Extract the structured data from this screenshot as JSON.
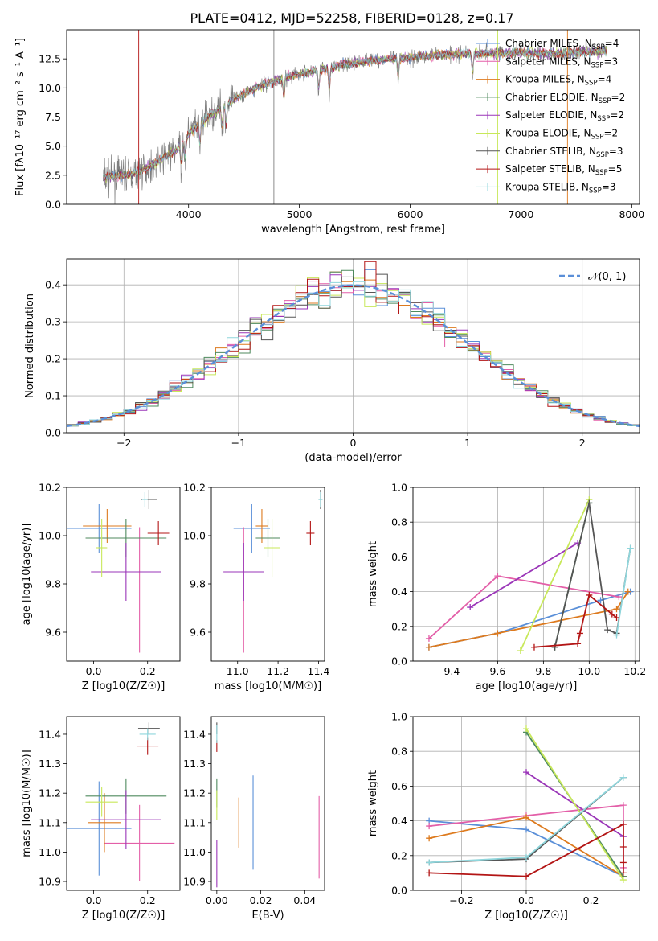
{
  "figure_title": "PLATE=0412, MJD=52258, FIBERID=0128, z=0.17",
  "models": [
    {
      "key": "chabrier_miles",
      "label": "Chabrier MILES, N",
      "nssp": "=4",
      "color": "#5a8fd8"
    },
    {
      "key": "salpeter_miles",
      "label": "Salpeter MILES, N",
      "nssp": "=3",
      "color": "#e35fa8"
    },
    {
      "key": "kroupa_miles",
      "label": "Kroupa MILES, N",
      "nssp": "=4",
      "color": "#dd7a1e"
    },
    {
      "key": "chabrier_elodie",
      "label": "Chabrier ELODIE, N",
      "nssp": "=2",
      "color": "#4f8a5e"
    },
    {
      "key": "salpeter_elodie",
      "label": "Salpeter ELODIE, N",
      "nssp": "=2",
      "color": "#9a35b8"
    },
    {
      "key": "kroupa_elodie",
      "label": "Kroupa ELODIE, N",
      "nssp": "=2",
      "color": "#c8e85a"
    },
    {
      "key": "chabrier_stelib",
      "label": "Chabrier STELIB, N",
      "nssp": "=3",
      "color": "#555555"
    },
    {
      "key": "salpeter_stelib",
      "label": "Salpeter STELIB, N",
      "nssp": "=5",
      "color": "#b31515"
    },
    {
      "key": "kroupa_stelib",
      "label": "Kroupa STELIB, N",
      "nssp": "=3",
      "color": "#8fd6dc"
    }
  ],
  "chart_data": [
    {
      "id": "spectrum",
      "type": "line",
      "xlabel": "wavelength [Angstrom, rest frame]",
      "ylabel": "Flux [fλ10⁻¹⁷ erg cm⁻² s⁻¹ A⁻¹]",
      "xlim": [
        2900,
        8070
      ],
      "ylim": [
        0,
        15
      ],
      "xticks": [
        4000,
        5000,
        6000,
        7000,
        8000
      ],
      "yticks": [
        0.0,
        2.5,
        5.0,
        7.5,
        10.0,
        12.5
      ],
      "ytick_labels": [
        "0.0",
        "2.5",
        "5.0",
        "7.5",
        "10.0",
        "12.5"
      ],
      "x_range": [
        3230,
        7780
      ],
      "continuum": {
        "x": [
          3230,
          3500,
          3700,
          3900,
          4000,
          4200,
          4400,
          4600,
          4800,
          5000,
          5200,
          5400,
          5600,
          5800,
          6000,
          6200,
          6400,
          6600,
          6800,
          7000,
          7200,
          7400,
          7600,
          7780
        ],
        "y": [
          2.3,
          2.6,
          3.5,
          4.8,
          6.0,
          7.7,
          9.0,
          10.0,
          10.7,
          11.2,
          11.6,
          12.0,
          12.3,
          12.5,
          12.6,
          12.8,
          12.9,
          13.0,
          13.0,
          13.0,
          13.0,
          13.0,
          13.1,
          13.2
        ]
      },
      "absorption_lines": [
        3934,
        3969,
        4102,
        4304,
        4340,
        4861,
        5175,
        5270,
        5892,
        6563
      ],
      "spikes": [
        {
          "x": 4770,
          "color": "#7f7f7f"
        },
        {
          "x": 6790,
          "color": "#c8e85a"
        },
        {
          "x": 7420,
          "color": "#dd7a1e"
        },
        {
          "x": 3550,
          "color": "#b31515"
        }
      ]
    },
    {
      "id": "residuals",
      "type": "histogram",
      "xlabel": "(data-model)/error",
      "ylabel": "Normed distribution",
      "xlim": [
        -2.5,
        2.5
      ],
      "ylim": [
        0,
        0.47
      ],
      "xticks": [
        -2,
        -1,
        0,
        1,
        2
      ],
      "xtick_labels": [
        "−2",
        "−1",
        "0",
        "1",
        "2"
      ],
      "yticks": [
        0.0,
        0.1,
        0.2,
        0.3,
        0.4
      ],
      "ytick_labels": [
        "0.0",
        "0.1",
        "0.2",
        "0.3",
        "0.4"
      ],
      "grid": true,
      "bin_width": 0.1,
      "reference_label": "𝒩(0, 1)",
      "reference_color": "#5a8fd8"
    },
    {
      "id": "age_vs_Z",
      "type": "errorbar",
      "xlabel": "Z [log10(Z/Z☉)]",
      "ylabel": "age  [log10(age/yr)]",
      "xlim": [
        -0.1,
        0.32
      ],
      "ylim": [
        9.48,
        10.2
      ],
      "xticks": [
        0.0,
        0.2
      ],
      "xtick_labels": [
        "0.0",
        "0.2"
      ],
      "yticks": [
        9.6,
        9.8,
        10.0,
        10.2
      ],
      "ytick_labels": [
        "9.6",
        "9.8",
        "10.0",
        "10.2"
      ],
      "points": [
        {
          "m": 0,
          "x": 0.02,
          "xerr": 0.12,
          "y": 10.03,
          "yerr": 0.1
        },
        {
          "m": 1,
          "x": 0.17,
          "xerr": 0.13,
          "y": 9.775,
          "yerr": 0.26
        },
        {
          "m": 2,
          "x": 0.05,
          "xerr": 0.09,
          "y": 10.04,
          "yerr": 0.07
        },
        {
          "m": 3,
          "x": 0.12,
          "xerr": 0.15,
          "y": 9.99,
          "yerr": 0.08
        },
        {
          "m": 4,
          "x": 0.12,
          "xerr": 0.13,
          "y": 9.85,
          "yerr": 0.12
        },
        {
          "m": 5,
          "x": 0.03,
          "xerr": 0.02,
          "y": 9.95,
          "yerr": 0.12
        },
        {
          "m": 6,
          "x": 0.205,
          "xerr": 0.03,
          "y": 10.15,
          "yerr": 0.04
        },
        {
          "m": 7,
          "x": 0.24,
          "xerr": 0.04,
          "y": 10.01,
          "yerr": 0.05
        },
        {
          "m": 8,
          "x": 0.19,
          "xerr": 0.01,
          "y": 10.15,
          "yerr": 0.03
        }
      ]
    },
    {
      "id": "age_vs_mass",
      "type": "errorbar",
      "xlabel": "mass [log10(M/M☉)]",
      "ylabel": "",
      "xlim": [
        10.87,
        11.43
      ],
      "ylim": [
        9.48,
        10.2
      ],
      "xticks": [
        11.0,
        11.2,
        11.4
      ],
      "xtick_labels": [
        "11.0",
        "11.2",
        "11.4"
      ],
      "yticks": [
        9.6,
        9.8,
        10.0,
        10.2
      ],
      "ytick_labels": [
        "9.6",
        "9.8",
        "10.0",
        "10.2"
      ],
      "points": [
        {
          "m": 0,
          "x": 11.07,
          "xerr": 0.09,
          "y": 10.03,
          "yerr": 0.1
        },
        {
          "m": 1,
          "x": 11.03,
          "xerr": 0.1,
          "y": 9.775,
          "yerr": 0.26
        },
        {
          "m": 2,
          "x": 11.12,
          "xerr": 0.03,
          "y": 10.04,
          "yerr": 0.07
        },
        {
          "m": 3,
          "x": 11.15,
          "xerr": 0.06,
          "y": 9.99,
          "yerr": 0.08
        },
        {
          "m": 4,
          "x": 11.03,
          "xerr": 0.1,
          "y": 9.85,
          "yerr": 0.12
        },
        {
          "m": 5,
          "x": 11.17,
          "xerr": 0.04,
          "y": 9.95,
          "yerr": 0.12
        },
        {
          "m": 6,
          "x": 11.41,
          "xerr": 0.01,
          "y": 10.15,
          "yerr": 0.04
        },
        {
          "m": 7,
          "x": 11.36,
          "xerr": 0.02,
          "y": 10.01,
          "yerr": 0.05
        },
        {
          "m": 8,
          "x": 11.41,
          "xerr": 0.01,
          "y": 10.15,
          "yerr": 0.03
        }
      ]
    },
    {
      "id": "weight_vs_age",
      "type": "line",
      "xlabel": "age  [log10(age/yr)]",
      "ylabel": "mass weight",
      "xlim": [
        9.23,
        10.22
      ],
      "ylim": [
        0,
        1
      ],
      "xticks": [
        9.4,
        9.6,
        9.8,
        10.0,
        10.2
      ],
      "xtick_labels": [
        "9.4",
        "9.6",
        "9.8",
        "10.0",
        "10.2"
      ],
      "yticks": [
        0.0,
        0.2,
        0.4,
        0.6,
        0.8,
        1.0
      ],
      "ytick_labels": [
        "0.0",
        "0.2",
        "0.4",
        "0.6",
        "0.8",
        "1.0"
      ],
      "grid": true,
      "series": [
        {
          "m": 0,
          "x": [
            9.3,
            9.6,
            10.05,
            10.18
          ],
          "y": [
            0.08,
            0.16,
            0.35,
            0.4
          ]
        },
        {
          "m": 1,
          "x": [
            9.3,
            9.6,
            10.13
          ],
          "y": [
            0.13,
            0.49,
            0.37
          ]
        },
        {
          "m": 2,
          "x": [
            9.3,
            9.6,
            10.12,
            10.17
          ],
          "y": [
            0.08,
            0.16,
            0.3,
            0.4
          ]
        },
        {
          "m": 3,
          "x": [
            9.85,
            10.0
          ],
          "y": [
            0.08,
            0.91
          ]
        },
        {
          "m": 4,
          "x": [
            9.48,
            9.95
          ],
          "y": [
            0.31,
            0.68
          ]
        },
        {
          "m": 5,
          "x": [
            9.7,
            10.0
          ],
          "y": [
            0.06,
            0.93
          ]
        },
        {
          "m": 6,
          "x": [
            9.85,
            10.0,
            10.08,
            10.12,
            10.18
          ],
          "y": [
            0.08,
            0.91,
            0.18,
            0.16,
            0.65
          ]
        },
        {
          "m": 7,
          "x": [
            9.76,
            9.95,
            9.96,
            10.0,
            10.1,
            10.12
          ],
          "y": [
            0.08,
            0.1,
            0.16,
            0.38,
            0.27,
            0.25
          ]
        },
        {
          "m": 8,
          "x": [
            10.12,
            10.18
          ],
          "y": [
            0.15,
            0.65
          ]
        }
      ]
    },
    {
      "id": "mass_vs_Z",
      "type": "errorbar",
      "xlabel": "Z [log10(Z/Z☉)]",
      "ylabel": "mass [log10(M/M☉)]",
      "xlim": [
        -0.1,
        0.32
      ],
      "ylim": [
        10.87,
        11.46
      ],
      "xticks": [
        0.0,
        0.2
      ],
      "xtick_labels": [
        "0.0",
        "0.2"
      ],
      "yticks": [
        10.9,
        11.0,
        11.1,
        11.2,
        11.3,
        11.4
      ],
      "ytick_labels": [
        "10.9",
        "11.0",
        "11.1",
        "11.2",
        "11.3",
        "11.4"
      ],
      "points": [
        {
          "m": 0,
          "x": 0.02,
          "xerr": 0.12,
          "y": 11.08,
          "yerr": 0.16
        },
        {
          "m": 1,
          "x": 0.17,
          "xerr": 0.13,
          "y": 11.03,
          "yerr": 0.13
        },
        {
          "m": 2,
          "x": 0.04,
          "xerr": 0.06,
          "y": 11.1,
          "yerr": 0.1
        },
        {
          "m": 3,
          "x": 0.12,
          "xerr": 0.15,
          "y": 11.19,
          "yerr": 0.06
        },
        {
          "m": 4,
          "x": 0.12,
          "xerr": 0.13,
          "y": 11.11,
          "yerr": 0.1
        },
        {
          "m": 5,
          "x": 0.03,
          "xerr": 0.06,
          "y": 11.17,
          "yerr": 0.05
        },
        {
          "m": 6,
          "x": 0.205,
          "xerr": 0.04,
          "y": 11.42,
          "yerr": 0.02
        },
        {
          "m": 7,
          "x": 0.2,
          "xerr": 0.04,
          "y": 11.36,
          "yerr": 0.03
        },
        {
          "m": 8,
          "x": 0.2,
          "xerr": 0.03,
          "y": 11.4,
          "yerr": 0.02
        }
      ]
    },
    {
      "id": "mass_vs_ebv",
      "type": "errorbar",
      "xlabel": "E(B-V)",
      "ylabel": "",
      "xlim": [
        -0.0025,
        0.049
      ],
      "ylim": [
        10.87,
        11.46
      ],
      "xticks": [
        0.0,
        0.02,
        0.04
      ],
      "xtick_labels": [
        "0.00",
        "0.02",
        "0.04"
      ],
      "yticks": [
        10.9,
        11.0,
        11.1,
        11.2,
        11.3,
        11.4
      ],
      "ytick_labels": [
        "10.9",
        "11.0",
        "11.1",
        "11.2",
        "11.3",
        "11.4"
      ],
      "points": [
        {
          "m": 0,
          "x": 0.0165,
          "xerr": 0,
          "y": 11.1,
          "yerr": 0.16
        },
        {
          "m": 1,
          "x": 0.0465,
          "xerr": 0,
          "y": 11.05,
          "yerr": 0.14
        },
        {
          "m": 2,
          "x": 0.01,
          "xerr": 0,
          "y": 11.1,
          "yerr": 0.085
        },
        {
          "m": 3,
          "x": 0.0,
          "xerr": 0,
          "y": 11.2,
          "yerr": 0.05
        },
        {
          "m": 4,
          "x": 0.0,
          "xerr": 0,
          "y": 10.96,
          "yerr": 0.08
        },
        {
          "m": 5,
          "x": 0.0,
          "xerr": 0,
          "y": 11.16,
          "yerr": 0.05
        },
        {
          "m": 6,
          "x": 0.0,
          "xerr": 0,
          "y": 11.42,
          "yerr": 0.02
        },
        {
          "m": 7,
          "x": 0.0,
          "xerr": 0,
          "y": 11.36,
          "yerr": 0.02
        },
        {
          "m": 8,
          "x": 0.0,
          "xerr": 0,
          "y": 11.4,
          "yerr": 0.03
        }
      ]
    },
    {
      "id": "weight_vs_Z",
      "type": "line",
      "xlabel": "Z [log10(Z/Z☉)]",
      "ylabel": "mass weight",
      "xlim": [
        -0.35,
        0.35
      ],
      "ylim": [
        0,
        1
      ],
      "xticks": [
        -0.2,
        0.0,
        0.2
      ],
      "xtick_labels": [
        "−0.2",
        "0.0",
        "0.2"
      ],
      "yticks": [
        0.0,
        0.2,
        0.4,
        0.6,
        0.8,
        1.0
      ],
      "ytick_labels": [
        "0.0",
        "0.2",
        "0.4",
        "0.6",
        "0.8",
        "1.0"
      ],
      "grid": true,
      "series": [
        {
          "m": 0,
          "x": [
            -0.3,
            0.0,
            0.3
          ],
          "y": [
            0.4,
            0.35,
            0.08
          ]
        },
        {
          "m": 1,
          "x": [
            -0.3,
            0.0,
            0.3,
            0.3
          ],
          "y": [
            0.37,
            0.43,
            0.49,
            0.13
          ]
        },
        {
          "m": 2,
          "x": [
            -0.3,
            0.0,
            0.3
          ],
          "y": [
            0.3,
            0.42,
            0.08
          ]
        },
        {
          "m": 3,
          "x": [
            0.0,
            0.3
          ],
          "y": [
            0.91,
            0.08
          ]
        },
        {
          "m": 4,
          "x": [
            0.0,
            0.3
          ],
          "y": [
            0.68,
            0.31
          ]
        },
        {
          "m": 5,
          "x": [
            0.0,
            0.3
          ],
          "y": [
            0.93,
            0.06
          ]
        },
        {
          "m": 6,
          "x": [
            -0.3,
            0.0,
            0.3
          ],
          "y": [
            0.16,
            0.18,
            0.65
          ]
        },
        {
          "m": 7,
          "x": [
            -0.3,
            0.0,
            0.3,
            0.3,
            0.3,
            0.3
          ],
          "y": [
            0.1,
            0.08,
            0.38,
            0.25,
            0.16,
            0.1
          ]
        },
        {
          "m": 8,
          "x": [
            -0.3,
            0.0,
            0.3
          ],
          "y": [
            0.16,
            0.19,
            0.65
          ]
        }
      ]
    }
  ]
}
